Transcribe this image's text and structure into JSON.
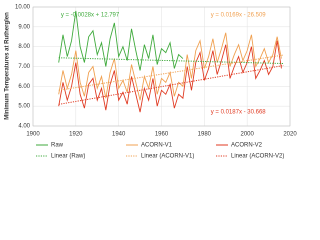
{
  "chart_data": {
    "type": "line",
    "y_label": "Minimum Temperatures at Rutherglen",
    "x": [
      1912,
      1914,
      1916,
      1918,
      1920,
      1922,
      1924,
      1926,
      1928,
      1930,
      1932,
      1934,
      1936,
      1938,
      1940,
      1942,
      1944,
      1946,
      1948,
      1950,
      1952,
      1954,
      1956,
      1958,
      1960,
      1962,
      1964,
      1966,
      1968,
      1970,
      1972,
      1974,
      1976,
      1978,
      1980,
      1982,
      1984,
      1986,
      1988,
      1990,
      1992,
      1994,
      1996,
      1998,
      2000,
      2002,
      2004,
      2006,
      2008,
      2010,
      2012,
      2014,
      2016
    ],
    "series": [
      {
        "name": "Raw",
        "color": "#3faa3c",
        "values": [
          7.2,
          8.6,
          7.5,
          8.3,
          9.8,
          8.0,
          7.2,
          8.5,
          8.8,
          7.6,
          8.2,
          7.0,
          8.4,
          9.2,
          7.5,
          8.0,
          7.3,
          8.9,
          7.8,
          6.8,
          8.1,
          7.4,
          8.6,
          7.1,
          7.9,
          7.7,
          8.2,
          6.9,
          7.6,
          7.4,
          null,
          null,
          null,
          null,
          null,
          null,
          null,
          null,
          null,
          null,
          null,
          null,
          null,
          null,
          null,
          null,
          null,
          null,
          null,
          null,
          null,
          null,
          null
        ]
      },
      {
        "name": "ACORN-V1",
        "color": "#f0a050",
        "values": [
          5.6,
          6.8,
          5.9,
          6.6,
          7.8,
          6.2,
          5.5,
          6.7,
          7.0,
          5.9,
          6.5,
          5.4,
          6.7,
          7.4,
          5.9,
          6.3,
          5.7,
          7.1,
          6.2,
          5.3,
          6.5,
          5.9,
          7.0,
          5.6,
          6.4,
          6.2,
          6.7,
          5.5,
          6.2,
          6.0,
          7.6,
          6.4,
          7.8,
          8.3,
          6.9,
          7.5,
          8.4,
          7.2,
          7.9,
          8.7,
          7.0,
          7.6,
          8.1,
          7.3,
          7.8,
          8.6,
          7.0,
          7.4,
          7.9,
          7.2,
          7.6,
          8.5,
          7.4
        ]
      },
      {
        "name": "ACORN-V2",
        "color": "#e03a22",
        "values": [
          5.0,
          6.2,
          5.3,
          6.0,
          7.2,
          5.6,
          4.9,
          6.1,
          6.4,
          5.3,
          5.9,
          4.8,
          6.1,
          6.8,
          5.3,
          5.7,
          5.1,
          6.5,
          5.6,
          4.7,
          5.9,
          5.3,
          6.4,
          5.0,
          5.8,
          5.6,
          6.1,
          4.9,
          5.6,
          5.4,
          7.0,
          5.8,
          7.2,
          7.7,
          6.3,
          6.9,
          7.8,
          6.6,
          7.3,
          8.1,
          6.4,
          7.0,
          7.5,
          6.7,
          7.2,
          8.0,
          6.4,
          6.8,
          7.3,
          6.6,
          7.0,
          8.3,
          6.9
        ]
      },
      {
        "name": "Linear (Raw)",
        "color": "#3faa3c",
        "dash": true,
        "x": [
          1912,
          2017
        ],
        "values": [
          7.44,
          7.15
        ]
      },
      {
        "name": "Linear (ACORN-V1)",
        "color": "#f0a050",
        "dash": true,
        "x": [
          1912,
          2017
        ],
        "values": [
          5.8,
          7.58
        ]
      },
      {
        "name": "Linear (ACORN-V2)",
        "color": "#e03a22",
        "dash": true,
        "x": [
          1912,
          2017
        ],
        "values": [
          5.09,
          7.05
        ]
      }
    ],
    "annotations": [
      {
        "text": "y = -0.0028x + 12.797",
        "color": "#3faa3c",
        "x": 1913,
        "y": 9.6
      },
      {
        "text": "y = 0.0169x - 26.509",
        "color": "#f0a050",
        "x": 1983,
        "y": 9.6
      },
      {
        "text": "y = 0.0187x - 30.668",
        "color": "#e03a22",
        "x": 1983,
        "y": 4.7
      }
    ],
    "xlim": [
      1900,
      2020
    ],
    "xticks": [
      1900,
      1920,
      1940,
      1960,
      1980,
      2000,
      2020
    ],
    "ylim": [
      4,
      10
    ],
    "yticks": [
      {
        "value": 4,
        "label": "4.00"
      },
      {
        "value": 5,
        "label": "5.00"
      },
      {
        "value": 6,
        "label": "6.00"
      },
      {
        "value": 7,
        "label": "7.00"
      },
      {
        "value": 8,
        "label": "8.00"
      },
      {
        "value": 9,
        "label": "9.00"
      },
      {
        "value": 10,
        "label": "10.00"
      }
    ],
    "grid": true
  }
}
